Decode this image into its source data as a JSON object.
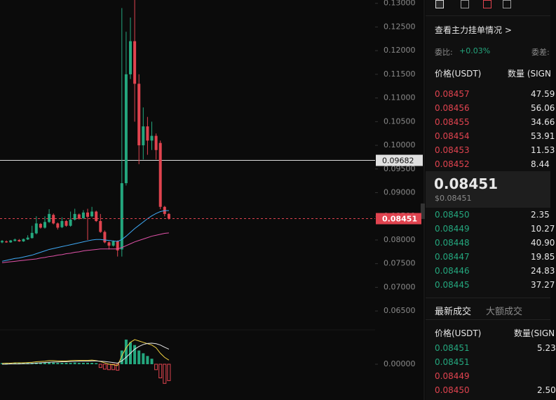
{
  "chart_data": {
    "type": "candlestick",
    "ylim": [
      0.0625,
      0.1307
    ],
    "yticks": [
      {
        "value": 0.13,
        "label": "0.13000"
      },
      {
        "value": 0.125,
        "label": "0.12500"
      },
      {
        "value": 0.12,
        "label": "0.12000"
      },
      {
        "value": 0.115,
        "label": "0.11500"
      },
      {
        "value": 0.11,
        "label": "0.11000"
      },
      {
        "value": 0.105,
        "label": "0.10500"
      },
      {
        "value": 0.1,
        "label": "0.10000"
      },
      {
        "value": 0.095,
        "label": "0.09500"
      },
      {
        "value": 0.09,
        "label": "0.09000"
      },
      {
        "value": 0.085,
        "label": "0.08500"
      },
      {
        "value": 0.08,
        "label": "0.08000"
      },
      {
        "value": 0.075,
        "label": "0.07500"
      },
      {
        "value": 0.07,
        "label": "0.07000"
      },
      {
        "value": 0.065,
        "label": "0.06500"
      }
    ],
    "up_color": "#24a77e",
    "down_color": "#e0434f",
    "open": [
      0.0795,
      0.0797,
      0.0795,
      0.0798,
      0.08,
      0.0797,
      0.0801,
      0.0804,
      0.0814,
      0.0834,
      0.0826,
      0.0838,
      0.0853,
      0.0835,
      0.0827,
      0.084,
      0.083,
      0.0843,
      0.0854,
      0.0846,
      0.0858,
      0.085,
      0.086,
      0.084,
      0.0817,
      0.0795,
      0.0788,
      0.0797,
      0.078,
      0.092,
      0.115,
      0.122,
      0.113,
      0.1,
      0.104,
      0.101,
      0.102,
      0.1005,
      0.087,
      0.0855
    ],
    "high": [
      0.08,
      0.0799,
      0.08,
      0.0803,
      0.0802,
      0.0803,
      0.081,
      0.083,
      0.085,
      0.0836,
      0.085,
      0.0865,
      0.0856,
      0.0837,
      0.0848,
      0.0842,
      0.086,
      0.0866,
      0.0856,
      0.0863,
      0.0866,
      0.087,
      0.0862,
      0.0855,
      0.082,
      0.0797,
      0.0799,
      0.0799,
      0.129,
      0.124,
      0.127,
      0.131,
      0.115,
      0.108,
      0.106,
      0.105,
      0.1025,
      0.101,
      0.0872,
      0.0857
    ],
    "low": [
      0.0793,
      0.0794,
      0.0794,
      0.0797,
      0.0796,
      0.0796,
      0.08,
      0.0803,
      0.0812,
      0.0824,
      0.0824,
      0.0836,
      0.0833,
      0.0822,
      0.0825,
      0.0828,
      0.0828,
      0.0841,
      0.0843,
      0.0844,
      0.08,
      0.0848,
      0.0838,
      0.0815,
      0.0793,
      0.078,
      0.0786,
      0.0765,
      0.0765,
      0.0915,
      0.114,
      0.105,
      0.096,
      0.097,
      0.098,
      0.099,
      0.097,
      0.0865,
      0.085,
      0.0843
    ],
    "close": [
      0.0798,
      0.0795,
      0.0799,
      0.0801,
      0.0797,
      0.0802,
      0.0805,
      0.0815,
      0.0835,
      0.0826,
      0.0838,
      0.0855,
      0.0835,
      0.0826,
      0.084,
      0.083,
      0.0843,
      0.0855,
      0.0845,
      0.0858,
      0.0849,
      0.086,
      0.084,
      0.0817,
      0.0795,
      0.0788,
      0.0797,
      0.0778,
      0.092,
      0.115,
      0.122,
      0.113,
      0.1,
      0.104,
      0.101,
      0.102,
      0.099,
      0.087,
      0.0855,
      0.0845
    ],
    "lines": [
      {
        "color": "#3fa9f5",
        "values": [
          0.0755,
          0.0757,
          0.0759,
          0.0761,
          0.0762,
          0.0764,
          0.0766,
          0.0768,
          0.0771,
          0.0774,
          0.0777,
          0.078,
          0.0782,
          0.0784,
          0.0786,
          0.0788,
          0.079,
          0.0792,
          0.0794,
          0.0796,
          0.0798,
          0.08,
          0.0801,
          0.0801,
          0.08,
          0.0799,
          0.0798,
          0.0797,
          0.0801,
          0.0808,
          0.0816,
          0.0824,
          0.0831,
          0.0838,
          0.0845,
          0.0851,
          0.0856,
          0.086,
          0.0862,
          0.0862
        ]
      },
      {
        "color": "#e052a8",
        "values": [
          0.0752,
          0.0753,
          0.0754,
          0.0755,
          0.0756,
          0.0757,
          0.0758,
          0.0759,
          0.076,
          0.0762,
          0.0763,
          0.0765,
          0.0766,
          0.0768,
          0.0769,
          0.0771,
          0.0772,
          0.0774,
          0.0775,
          0.0777,
          0.0778,
          0.0779,
          0.078,
          0.0781,
          0.0781,
          0.0781,
          0.0781,
          0.0781,
          0.0784,
          0.0788,
          0.0792,
          0.0796,
          0.0799,
          0.0802,
          0.0805,
          0.0808,
          0.081,
          0.0812,
          0.0814,
          0.0815
        ]
      }
    ],
    "last_price": 0.08451,
    "marked_price": 0.09682,
    "macd": {
      "ylim": [
        -0.001,
        0.001
      ],
      "yticks": [
        {
          "value": 0,
          "label": "0.00000"
        }
      ],
      "hist": [
        4e-05,
        4e-05,
        4e-05,
        4e-05,
        4e-05,
        4e-05,
        5e-05,
        5e-05,
        6e-05,
        6e-05,
        6e-05,
        7e-05,
        6e-05,
        5e-05,
        5e-05,
        5e-05,
        5e-05,
        6e-05,
        5e-05,
        5e-05,
        5e-05,
        5e-05,
        4e-05,
        -0.00012,
        -0.00018,
        -0.0002,
        -0.0002,
        -0.00022,
        0.0005,
        0.0009,
        0.0008,
        0.0007,
        0.0005,
        0.0004,
        0.0003,
        0.0002,
        -0.0002,
        -0.0005,
        -0.0007,
        -0.0006
      ],
      "lines": [
        {
          "color": "#f0d040",
          "values": [
            3e-05,
            4e-05,
            4e-05,
            5e-05,
            5e-05,
            5e-05,
            6e-05,
            7e-05,
            9e-05,
            0.0001,
            0.00011,
            0.00013,
            0.00013,
            0.00012,
            0.00012,
            0.00012,
            0.00013,
            0.00014,
            0.00014,
            0.00014,
            0.00014,
            0.00015,
            0.00013,
            0.0001,
            5e-05,
            0.0,
            -2e-05,
            -5e-05,
            0.0003,
            0.0006,
            0.0008,
            0.0009,
            0.00085,
            0.0008,
            0.00075,
            0.0007,
            0.0006,
            0.0004,
            0.00025,
            0.00015
          ]
        },
        {
          "color": "#e8e8e8",
          "values": [
            0.0,
            0.0,
            1e-05,
            1e-05,
            1e-05,
            2e-05,
            2e-05,
            3e-05,
            4e-05,
            5e-05,
            6e-05,
            7e-05,
            8e-05,
            8e-05,
            9e-05,
            9e-05,
            0.0001,
            0.0001,
            0.00011,
            0.00011,
            0.00011,
            0.00012,
            0.00012,
            0.00011,
            0.0001,
            8e-05,
            6e-05,
            4e-05,
            0.00012,
            0.00025,
            0.0004,
            0.00055,
            0.00065,
            0.00072,
            0.00076,
            0.00077,
            0.00075,
            0.0007,
            0.00062,
            0.00055
          ]
        }
      ]
    }
  },
  "panel": {
    "main_orders_link": "查看主力挂单情况 >",
    "ratio_label": "委比:",
    "ratio_value": "+0.03%",
    "diff_label": "委差:",
    "book_header": {
      "price": "价格(USDT)",
      "amount": "数量 (SIGN"
    },
    "asks": [
      [
        "0.08457",
        "47.59"
      ],
      [
        "0.08456",
        "56.06"
      ],
      [
        "0.08455",
        "34.66"
      ],
      [
        "0.08454",
        "53.91"
      ],
      [
        "0.08453",
        "11.53"
      ],
      [
        "0.08452",
        "8.44"
      ]
    ],
    "mid_price": "0.08451",
    "mid_usd": "$0.08451",
    "bids": [
      [
        "0.08450",
        "2.35"
      ],
      [
        "0.08449",
        "10.27"
      ],
      [
        "0.08448",
        "40.90"
      ],
      [
        "0.08447",
        "19.85"
      ],
      [
        "0.08446",
        "24.83"
      ],
      [
        "0.08445",
        "37.27"
      ]
    ],
    "tabs": [
      "最新成交",
      "大额成交"
    ],
    "trades_header": {
      "price": "价格(USDT)",
      "amount": "数量(SIGN"
    },
    "trades": [
      {
        "price": "0.08451",
        "side": "buy",
        "amount": "5.23"
      },
      {
        "price": "0.08451",
        "side": "buy"
      },
      {
        "price": "0.08449",
        "side": "sell"
      },
      {
        "price": "0.08450",
        "side": "sell",
        "amount": "2.50"
      }
    ]
  }
}
